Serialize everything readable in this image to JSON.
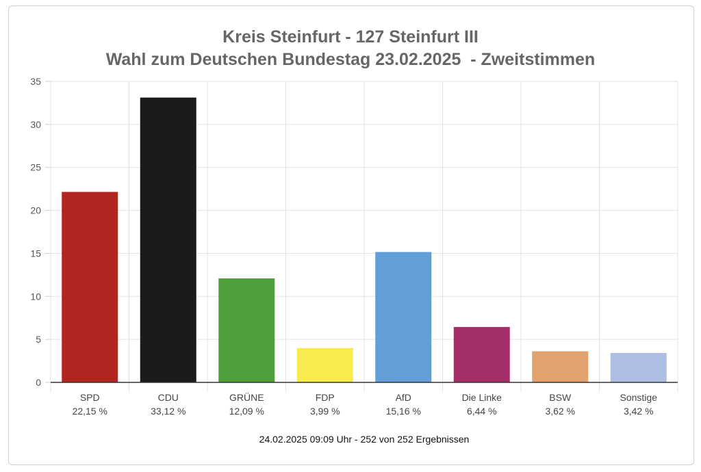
{
  "chart_data": {
    "type": "bar",
    "title": [
      "Kreis Steinfurt - 127 Steinfurt III",
      "Wahl zum Deutschen Bundestag 23.02.2025  - Zweitstimmen"
    ],
    "xlabel": "",
    "ylabel": "",
    "ylim": [
      0,
      35
    ],
    "yticks": [
      0,
      5,
      10,
      15,
      20,
      25,
      30,
      35
    ],
    "grid": true,
    "categories": [
      "SPD",
      "CDU",
      "GRÜNE",
      "FDP",
      "AfD",
      "Die Linke",
      "BSW",
      "Sonstige"
    ],
    "values": [
      22.15,
      33.12,
      12.09,
      3.99,
      15.16,
      6.44,
      3.62,
      3.42
    ],
    "value_labels": [
      "22,15 %",
      "33,12 %",
      "12,09 %",
      "3,99 %",
      "15,16 %",
      "6,44 %",
      "3,62 %",
      "3,42 %"
    ],
    "colors": [
      "#b22420",
      "#1b1b1b",
      "#4f9f3d",
      "#f9ea4d",
      "#619fd6",
      "#a52f68",
      "#e2a26d",
      "#aebde2"
    ]
  },
  "footer": "24.02.2025 09:09 Uhr - 252 von 252 Ergebnissen"
}
